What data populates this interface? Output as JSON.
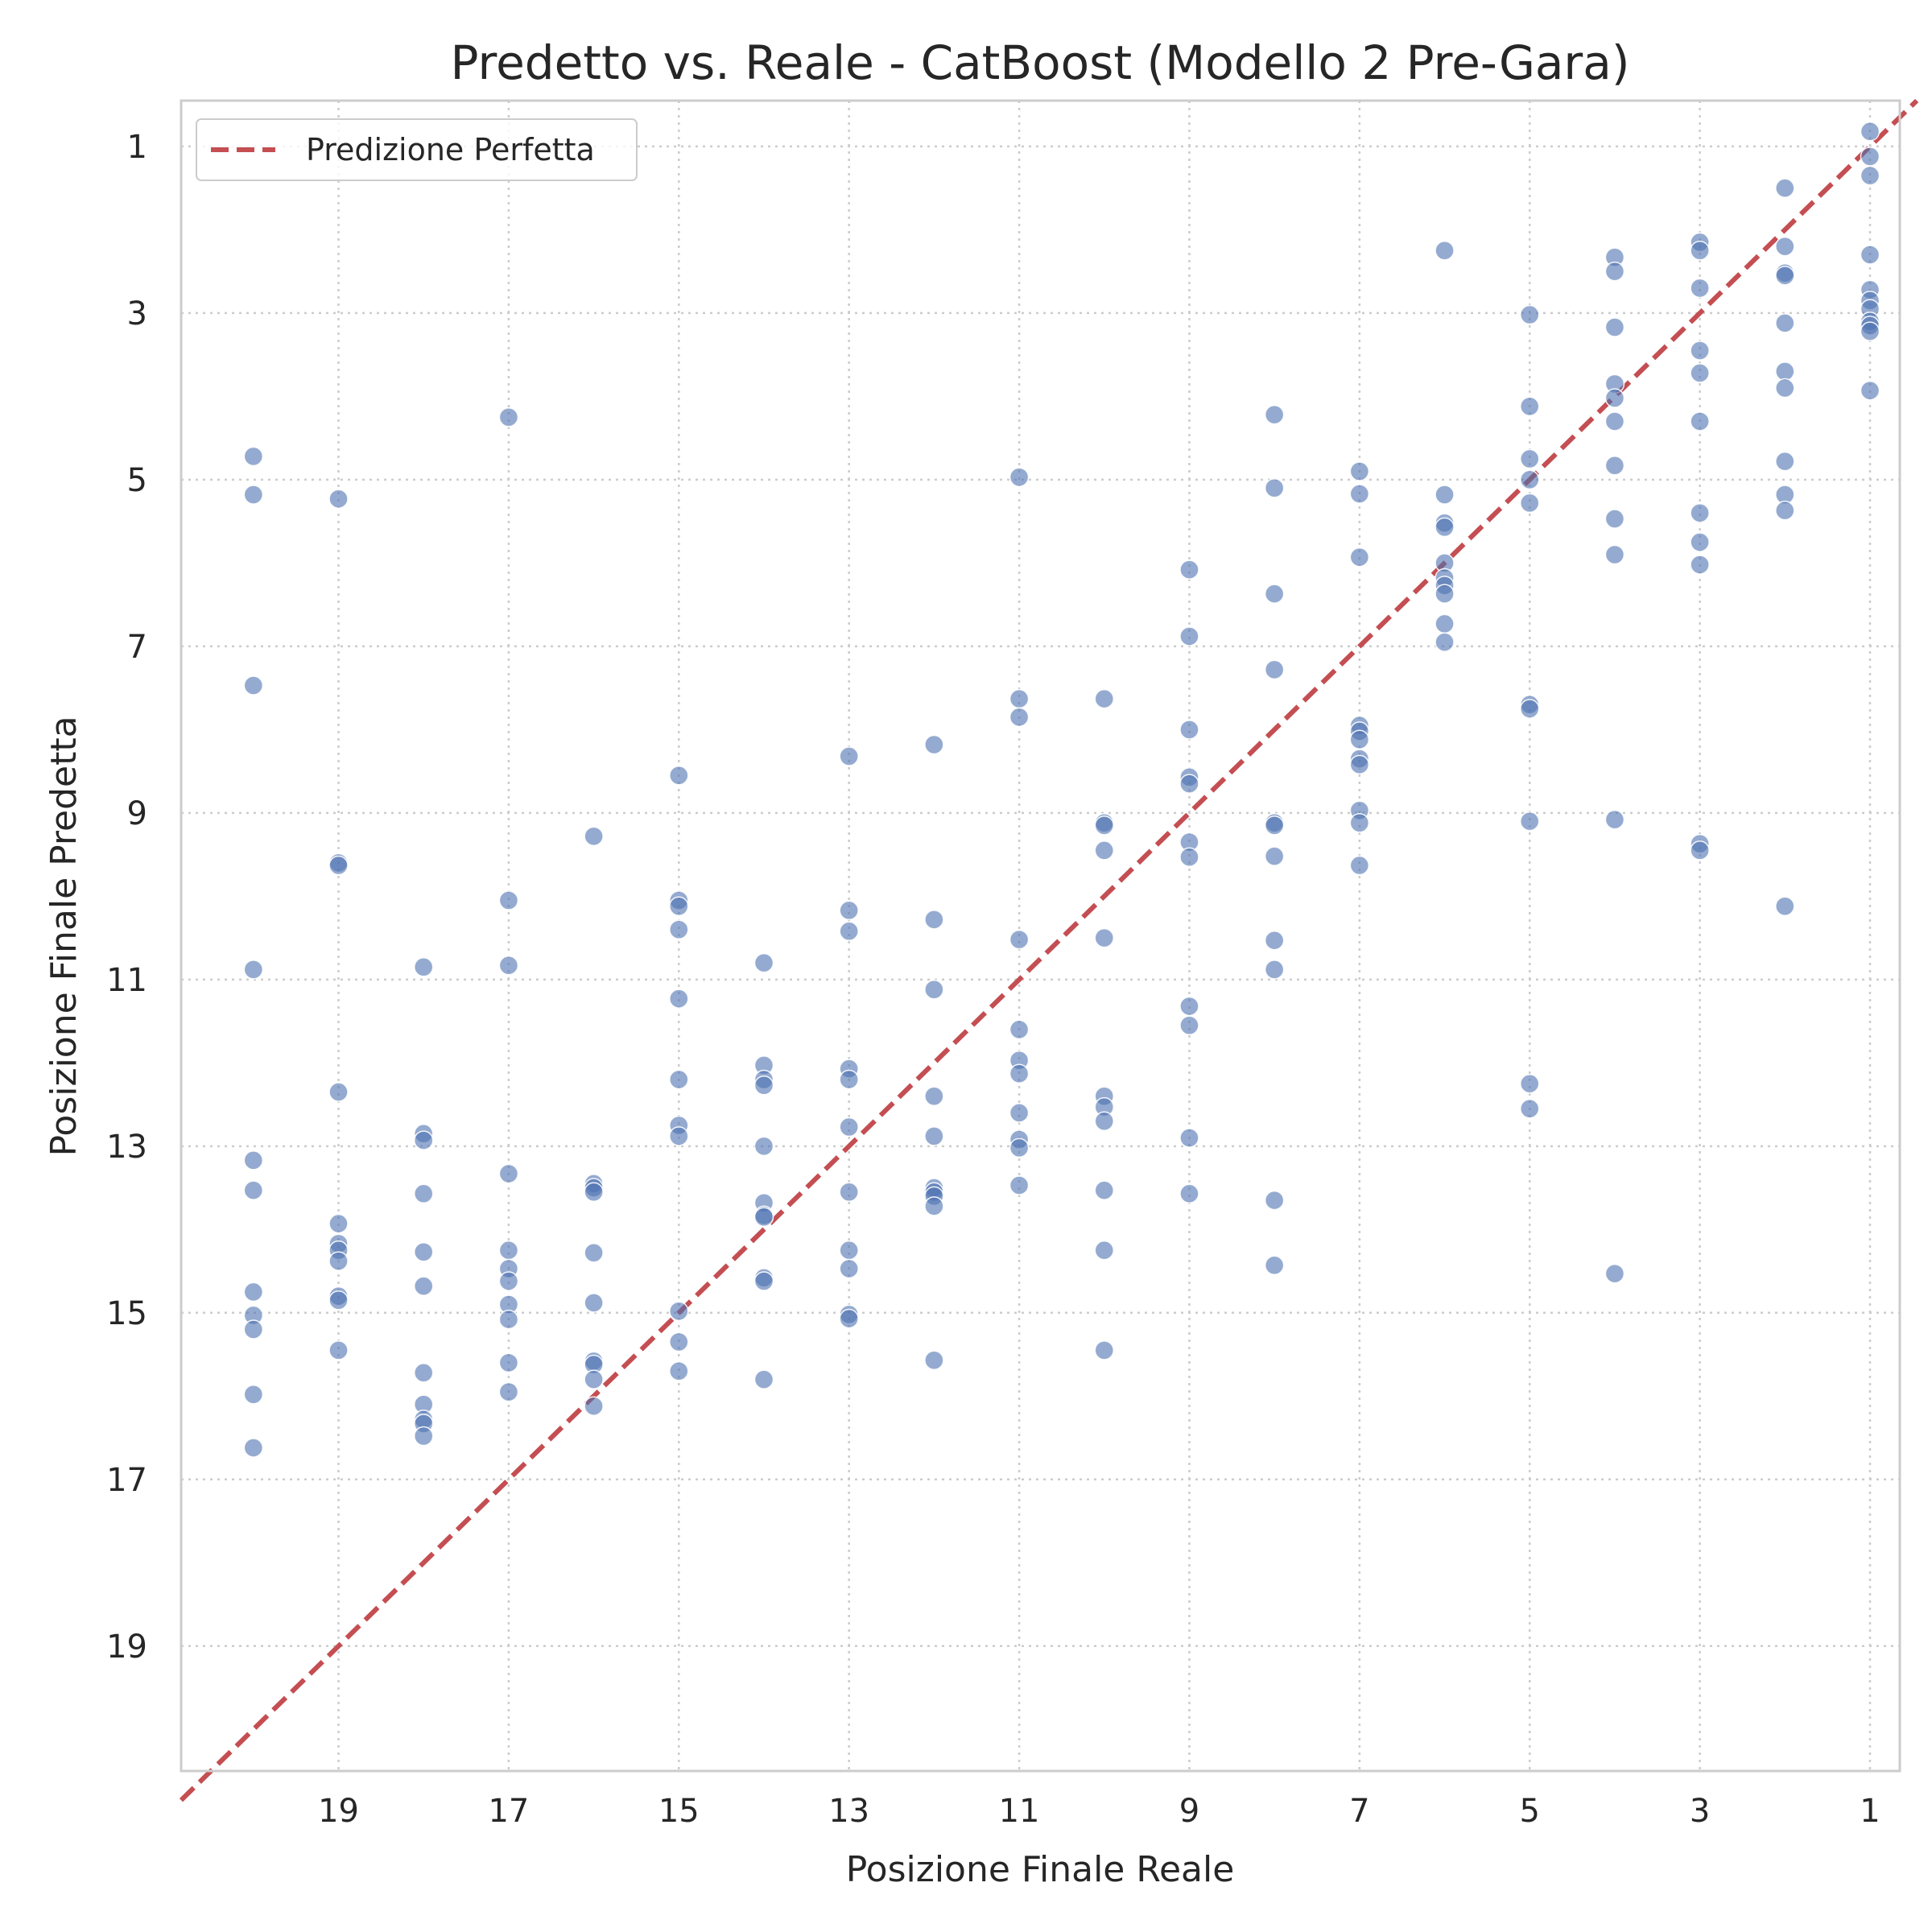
{
  "chart_data": {
    "type": "scatter",
    "title": "Predetto vs. Reale - CatBoost (Modello 2 Pre-Gara)",
    "xlabel": "Posizione Finale Reale",
    "ylabel": "Posizione Finale Predetta",
    "x_inverted": true,
    "y_inverted": true,
    "xlim": [
      20.85,
      0.65
    ],
    "ylim": [
      20.5,
      0.45
    ],
    "x_ticks": [
      19,
      17,
      15,
      13,
      11,
      9,
      7,
      5,
      3,
      1
    ],
    "y_ticks": [
      1,
      3,
      5,
      7,
      9,
      11,
      13,
      15,
      17,
      19
    ],
    "grid": true,
    "legend": {
      "position": "top-left",
      "entries": [
        {
          "label": "Predizione Perfetta",
          "style": "dashed",
          "color": "#c44e52"
        }
      ]
    },
    "colors": {
      "points": "#4c72b0",
      "reference_line": "#c44e52"
    },
    "reference_line": {
      "label": "Predizione Perfetta",
      "from": [
        20.85,
        20.85
      ],
      "to": [
        0.45,
        0.45
      ]
    },
    "series": [
      {
        "values": [
          [
            1,
            0.82
          ],
          [
            1,
            1.12
          ],
          [
            1,
            1.35
          ],
          [
            1,
            2.3
          ],
          [
            1,
            2.72
          ],
          [
            1,
            2.85
          ],
          [
            1,
            2.95
          ],
          [
            1,
            3.1
          ],
          [
            1,
            3.15
          ],
          [
            1,
            3.22
          ],
          [
            1,
            3.93
          ],
          [
            2,
            1.5
          ],
          [
            2,
            2.2
          ],
          [
            2,
            2.52
          ],
          [
            2,
            2.55
          ],
          [
            2,
            3.12
          ],
          [
            2,
            3.7
          ],
          [
            2,
            3.9
          ],
          [
            2,
            4.78
          ],
          [
            2,
            5.18
          ],
          [
            2,
            5.37
          ],
          [
            2,
            10.12
          ],
          [
            3,
            2.15
          ],
          [
            3,
            2.25
          ],
          [
            3,
            2.7
          ],
          [
            3,
            3.45
          ],
          [
            3,
            3.72
          ],
          [
            3,
            4.3
          ],
          [
            3,
            5.4
          ],
          [
            3,
            5.75
          ],
          [
            3,
            6.02
          ],
          [
            3,
            9.37
          ],
          [
            3,
            9.45
          ],
          [
            4,
            2.33
          ],
          [
            4,
            2.5
          ],
          [
            4,
            3.17
          ],
          [
            4,
            3.85
          ],
          [
            4,
            4.02
          ],
          [
            4,
            4.3
          ],
          [
            4,
            4.83
          ],
          [
            4,
            5.47
          ],
          [
            4,
            5.9
          ],
          [
            4,
            9.08
          ],
          [
            4,
            14.53
          ],
          [
            5,
            3.02
          ],
          [
            5,
            4.12
          ],
          [
            5,
            4.75
          ],
          [
            5,
            5.0
          ],
          [
            5,
            5.28
          ],
          [
            5,
            7.7
          ],
          [
            5,
            7.75
          ],
          [
            5,
            9.1
          ],
          [
            5,
            12.25
          ],
          [
            5,
            12.55
          ],
          [
            6,
            2.25
          ],
          [
            6,
            5.18
          ],
          [
            6,
            5.52
          ],
          [
            6,
            5.57
          ],
          [
            6,
            6.0
          ],
          [
            6,
            6.18
          ],
          [
            6,
            6.27
          ],
          [
            6,
            6.37
          ],
          [
            6,
            6.73
          ],
          [
            6,
            6.95
          ],
          [
            7,
            4.9
          ],
          [
            7,
            5.17
          ],
          [
            7,
            5.93
          ],
          [
            7,
            7.95
          ],
          [
            7,
            8.02
          ],
          [
            7,
            8.12
          ],
          [
            7,
            8.35
          ],
          [
            7,
            8.42
          ],
          [
            7,
            8.97
          ],
          [
            7,
            9.12
          ],
          [
            7,
            9.63
          ],
          [
            8,
            4.22
          ],
          [
            8,
            5.1
          ],
          [
            8,
            6.37
          ],
          [
            8,
            7.28
          ],
          [
            8,
            9.12
          ],
          [
            8,
            9.15
          ],
          [
            8,
            9.52
          ],
          [
            8,
            10.53
          ],
          [
            8,
            10.88
          ],
          [
            8,
            13.65
          ],
          [
            8,
            14.43
          ],
          [
            9,
            6.08
          ],
          [
            9,
            6.88
          ],
          [
            9,
            8.0
          ],
          [
            9,
            8.57
          ],
          [
            9,
            8.65
          ],
          [
            9,
            9.35
          ],
          [
            9,
            9.53
          ],
          [
            9,
            11.32
          ],
          [
            9,
            11.55
          ],
          [
            9,
            12.9
          ],
          [
            9,
            13.57
          ],
          [
            10,
            7.63
          ],
          [
            10,
            9.12
          ],
          [
            10,
            9.15
          ],
          [
            10,
            9.45
          ],
          [
            10,
            10.5
          ],
          [
            10,
            12.4
          ],
          [
            10,
            12.53
          ],
          [
            10,
            12.7
          ],
          [
            10,
            13.53
          ],
          [
            10,
            14.25
          ],
          [
            10,
            15.45
          ],
          [
            11,
            4.97
          ],
          [
            11,
            7.63
          ],
          [
            11,
            7.85
          ],
          [
            11,
            10.52
          ],
          [
            11,
            11.6
          ],
          [
            11,
            11.97
          ],
          [
            11,
            12.13
          ],
          [
            11,
            12.6
          ],
          [
            11,
            12.92
          ],
          [
            11,
            13.02
          ],
          [
            11,
            13.47
          ],
          [
            12,
            8.18
          ],
          [
            12,
            10.28
          ],
          [
            12,
            11.12
          ],
          [
            12,
            12.4
          ],
          [
            12,
            12.88
          ],
          [
            12,
            13.5
          ],
          [
            12,
            13.55
          ],
          [
            12,
            13.6
          ],
          [
            12,
            13.72
          ],
          [
            12,
            15.57
          ],
          [
            13,
            8.32
          ],
          [
            13,
            10.17
          ],
          [
            13,
            10.42
          ],
          [
            13,
            12.07
          ],
          [
            13,
            12.2
          ],
          [
            13,
            12.77
          ],
          [
            13,
            13.55
          ],
          [
            13,
            14.25
          ],
          [
            13,
            14.47
          ],
          [
            13,
            15.02
          ],
          [
            13,
            15.07
          ],
          [
            14,
            10.8
          ],
          [
            14,
            12.03
          ],
          [
            14,
            12.2
          ],
          [
            14,
            12.27
          ],
          [
            14,
            13.0
          ],
          [
            14,
            13.68
          ],
          [
            14,
            13.83
          ],
          [
            14,
            13.85
          ],
          [
            14,
            14.58
          ],
          [
            14,
            14.62
          ],
          [
            14,
            15.8
          ],
          [
            15,
            8.55
          ],
          [
            15,
            10.05
          ],
          [
            15,
            10.12
          ],
          [
            15,
            10.4
          ],
          [
            15,
            11.23
          ],
          [
            15,
            12.2
          ],
          [
            15,
            12.75
          ],
          [
            15,
            12.88
          ],
          [
            15,
            14.98
          ],
          [
            15,
            15.35
          ],
          [
            15,
            15.7
          ],
          [
            16,
            9.28
          ],
          [
            16,
            13.45
          ],
          [
            16,
            13.5
          ],
          [
            16,
            13.55
          ],
          [
            16,
            14.28
          ],
          [
            16,
            14.88
          ],
          [
            16,
            15.58
          ],
          [
            16,
            15.62
          ],
          [
            16,
            15.8
          ],
          [
            16,
            16.12
          ],
          [
            17,
            4.25
          ],
          [
            17,
            10.05
          ],
          [
            17,
            10.83
          ],
          [
            17,
            13.33
          ],
          [
            17,
            14.25
          ],
          [
            17,
            14.47
          ],
          [
            17,
            14.62
          ],
          [
            17,
            14.9
          ],
          [
            17,
            15.08
          ],
          [
            17,
            15.6
          ],
          [
            17,
            15.95
          ],
          [
            18,
            10.85
          ],
          [
            18,
            12.85
          ],
          [
            18,
            12.93
          ],
          [
            18,
            13.57
          ],
          [
            18,
            14.27
          ],
          [
            18,
            14.68
          ],
          [
            18,
            15.72
          ],
          [
            18,
            16.1
          ],
          [
            18,
            16.28
          ],
          [
            18,
            16.33
          ],
          [
            18,
            16.48
          ],
          [
            19,
            5.23
          ],
          [
            19,
            9.6
          ],
          [
            19,
            9.63
          ],
          [
            19,
            12.35
          ],
          [
            19,
            13.93
          ],
          [
            19,
            14.17
          ],
          [
            19,
            14.25
          ],
          [
            19,
            14.38
          ],
          [
            19,
            14.8
          ],
          [
            19,
            14.85
          ],
          [
            19,
            15.45
          ],
          [
            20,
            4.72
          ],
          [
            20,
            5.18
          ],
          [
            20,
            7.47
          ],
          [
            20,
            10.88
          ],
          [
            20,
            13.17
          ],
          [
            20,
            13.53
          ],
          [
            20,
            14.75
          ],
          [
            20,
            15.03
          ],
          [
            20,
            15.2
          ],
          [
            20,
            15.98
          ],
          [
            20,
            16.62
          ]
        ]
      }
    ]
  }
}
